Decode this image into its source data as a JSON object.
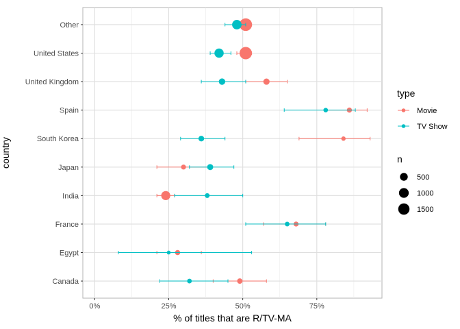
{
  "chart_data": {
    "type": "scatter",
    "xlabel": "% of titles that are R/TV-MA",
    "ylabel": "country",
    "xlim": [
      -0.04,
      0.97
    ],
    "x_ticks": [
      {
        "value": 0,
        "label": "0%"
      },
      {
        "value": 0.25,
        "label": "25%"
      },
      {
        "value": 0.5,
        "label": "50%"
      },
      {
        "value": 0.75,
        "label": "75%"
      }
    ],
    "categories": [
      "Canada",
      "Egypt",
      "France",
      "India",
      "Japan",
      "South Korea",
      "Spain",
      "United Kingdom",
      "United States",
      "Other"
    ],
    "grid": true,
    "legend": {
      "type_title": "type",
      "type_items": [
        {
          "name": "Movie",
          "color": "#F8766D"
        },
        {
          "name": "TV Show",
          "color": "#00BFC4"
        }
      ],
      "size_title": "n",
      "size_items": [
        {
          "label": "500",
          "value": 500
        },
        {
          "label": "1000",
          "value": 1000
        },
        {
          "label": "1500",
          "value": 1500
        }
      ],
      "placement": "right"
    },
    "series": [
      {
        "name": "Movie",
        "color": "#F8766D",
        "points": [
          {
            "category": "Canada",
            "x": 0.49,
            "lo": 0.4,
            "hi": 0.58,
            "n": 120
          },
          {
            "category": "Egypt",
            "x": 0.28,
            "lo": 0.21,
            "hi": 0.36,
            "n": 100
          },
          {
            "category": "France",
            "x": 0.68,
            "lo": 0.57,
            "hi": 0.78,
            "n": 90
          },
          {
            "category": "India",
            "x": 0.24,
            "lo": 0.21,
            "hi": 0.27,
            "n": 800
          },
          {
            "category": "Japan",
            "x": 0.3,
            "lo": 0.21,
            "hi": 0.39,
            "n": 80
          },
          {
            "category": "South Korea",
            "x": 0.84,
            "lo": 0.69,
            "hi": 0.93,
            "n": 40
          },
          {
            "category": "Spain",
            "x": 0.86,
            "lo": 0.78,
            "hi": 0.92,
            "n": 100
          },
          {
            "category": "United Kingdom",
            "x": 0.58,
            "lo": 0.51,
            "hi": 0.65,
            "n": 230
          },
          {
            "category": "United States",
            "x": 0.51,
            "lo": 0.48,
            "hi": 0.53,
            "n": 1900
          },
          {
            "category": "Other",
            "x": 0.51,
            "lo": 0.49,
            "hi": 0.53,
            "n": 2000
          }
        ]
      },
      {
        "name": "TV Show",
        "color": "#00BFC4",
        "points": [
          {
            "category": "Canada",
            "x": 0.32,
            "lo": 0.22,
            "hi": 0.45,
            "n": 60
          },
          {
            "category": "Egypt",
            "x": 0.25,
            "lo": 0.08,
            "hi": 0.53,
            "n": 15
          },
          {
            "category": "France",
            "x": 0.65,
            "lo": 0.51,
            "hi": 0.78,
            "n": 60
          },
          {
            "category": "India",
            "x": 0.38,
            "lo": 0.27,
            "hi": 0.5,
            "n": 70
          },
          {
            "category": "Japan",
            "x": 0.39,
            "lo": 0.32,
            "hi": 0.47,
            "n": 200
          },
          {
            "category": "South Korea",
            "x": 0.36,
            "lo": 0.29,
            "hi": 0.44,
            "n": 150
          },
          {
            "category": "Spain",
            "x": 0.78,
            "lo": 0.64,
            "hi": 0.88,
            "n": 50
          },
          {
            "category": "United Kingdom",
            "x": 0.43,
            "lo": 0.36,
            "hi": 0.51,
            "n": 250
          },
          {
            "category": "United States",
            "x": 0.42,
            "lo": 0.39,
            "hi": 0.46,
            "n": 850
          },
          {
            "category": "Other",
            "x": 0.48,
            "lo": 0.44,
            "hi": 0.51,
            "n": 900
          }
        ]
      }
    ]
  }
}
